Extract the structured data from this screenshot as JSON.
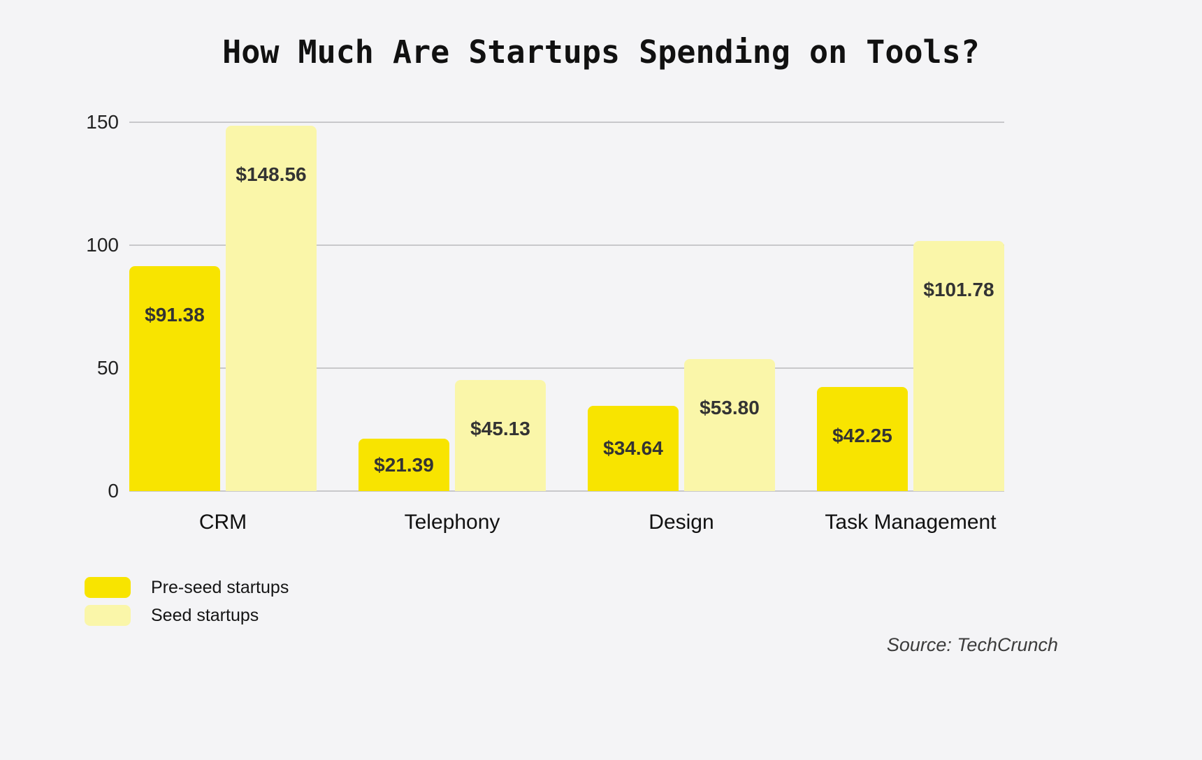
{
  "title": "How Much Are Startups Spending on Tools?",
  "source": "Source: TechCrunch",
  "legend": [
    {
      "label": "Pre-seed startups",
      "color": "#F8E400"
    },
    {
      "label": "Seed startups",
      "color": "#FAF6A9"
    }
  ],
  "colors": {
    "background": "#F4F4F6",
    "grid": "#C8C8CB",
    "preseed": "#F8E400",
    "seed": "#FAF6A9"
  },
  "chart_data": {
    "type": "bar",
    "title": "How Much Are Startups Spending on Tools?",
    "categories": [
      "CRM",
      "Telephony",
      "Design",
      "Task Management"
    ],
    "series": [
      {
        "name": "Pre-seed startups",
        "color": "#F8E400",
        "values": [
          91.38,
          21.39,
          34.64,
          42.25
        ],
        "labels": [
          "$91.38",
          "$21.39",
          "$34.64",
          "$42.25"
        ]
      },
      {
        "name": "Seed startups",
        "color": "#FAF6A9",
        "values": [
          148.56,
          45.13,
          53.8,
          101.78
        ],
        "labels": [
          "$148.56",
          "$45.13",
          "$53.80",
          "$101.78"
        ]
      }
    ],
    "xlabel": "",
    "ylabel": "",
    "ylim": [
      0,
      150
    ],
    "yticks": [
      0,
      50,
      100,
      150
    ],
    "grid": true,
    "legend_position": "bottom-left",
    "source": "Source: TechCrunch"
  }
}
